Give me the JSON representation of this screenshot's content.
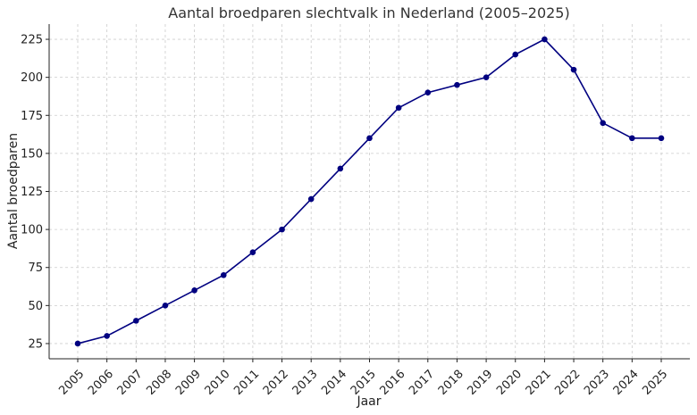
{
  "chart_data": {
    "type": "line",
    "title": "Aantal broedparen slechtvalk in Nederland (2005–2025)",
    "xlabel": "Jaar",
    "ylabel": "Aantal broedparen",
    "categories": [
      "2005",
      "2006",
      "2007",
      "2008",
      "2009",
      "2010",
      "2011",
      "2012",
      "2013",
      "2014",
      "2015",
      "2016",
      "2017",
      "2018",
      "2019",
      "2020",
      "2021",
      "2022",
      "2023",
      "2024",
      "2025"
    ],
    "series": [
      {
        "values": [
          25,
          30,
          40,
          50,
          60,
          70,
          85,
          100,
          120,
          140,
          160,
          180,
          190,
          195,
          200,
          215,
          225,
          205,
          170,
          160,
          160
        ],
        "color": "#000080",
        "marker": "circle"
      }
    ],
    "ylim": [
      15,
      235
    ],
    "yticks": [
      25,
      50,
      75,
      100,
      125,
      150,
      175,
      200,
      225
    ],
    "grid": true
  }
}
